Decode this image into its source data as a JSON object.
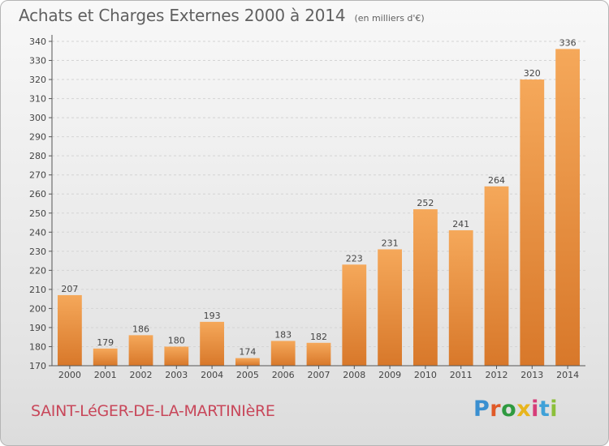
{
  "header": {
    "title": "Achats et Charges Externes 2000 à 2014",
    "subtitle": "(en milliers d'€)"
  },
  "footer": {
    "commune": "SAINT-LéGER-DE-LA-MARTINIèRE",
    "logo": {
      "text": "Proxiti",
      "letter_colors": [
        "#3a8fd0",
        "#e05a28",
        "#2f9a40",
        "#e8b51d",
        "#d63d79",
        "#3fa1d8",
        "#8cbf3a"
      ]
    }
  },
  "colors": {
    "bar_light": "#f5a85a",
    "bar_dark": "#d8782a",
    "grid": "#d4d4d4",
    "axis": "#555555",
    "text": "#444444"
  },
  "chart_data": {
    "type": "bar",
    "categories": [
      "2000",
      "2001",
      "2002",
      "2003",
      "2004",
      "2005",
      "2006",
      "2007",
      "2008",
      "2009",
      "2010",
      "2011",
      "2012",
      "2013",
      "2014"
    ],
    "values": [
      207,
      179,
      186,
      180,
      193,
      174,
      183,
      182,
      223,
      231,
      252,
      241,
      264,
      320,
      336
    ],
    "data_labels": [
      "207",
      "179",
      "186",
      "180",
      "193",
      "174",
      "183",
      "182",
      "223",
      "231",
      "252",
      "241",
      "264",
      "320",
      "336"
    ],
    "y_ticks": [
      170,
      180,
      190,
      200,
      210,
      220,
      230,
      240,
      250,
      260,
      270,
      280,
      290,
      300,
      310,
      320,
      330,
      340
    ],
    "y_tick_labels": [
      "170",
      "180",
      "190",
      "200",
      "210",
      "220",
      "230",
      "240",
      "250",
      "260",
      "270",
      "280",
      "290",
      "300",
      "310",
      "320",
      "330",
      "340"
    ],
    "ylim": [
      170,
      340
    ],
    "grid": true,
    "legend": false
  }
}
